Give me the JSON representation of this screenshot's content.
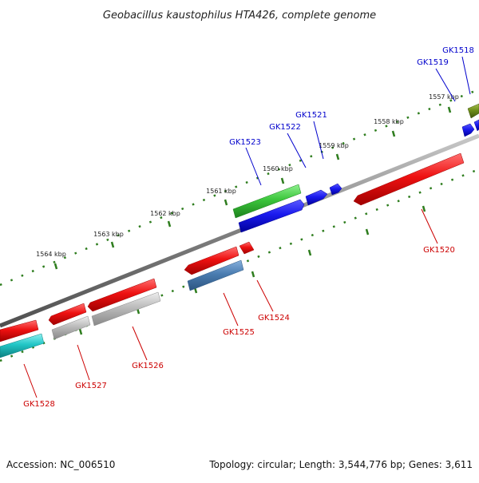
{
  "title": "Geobacillus kaustophilus HTA426, complete genome",
  "footer": {
    "accession": "Accession: NC_006510",
    "summary": "Topology: circular; Length: 3,544,776 bp; Genes: 3,611"
  },
  "kbp_labels": [
    "1557 kbp",
    "1558 kbp",
    "1559 kbp",
    "1560 kbp",
    "1561 kbp",
    "1562 kbp",
    "1563 kbp",
    "1564 kbp"
  ],
  "genes": [
    {
      "label": "GK1518",
      "strand": "top",
      "color": "#0000cc"
    },
    {
      "label": "GK1519",
      "strand": "top",
      "color": "#0000cc"
    },
    {
      "label": "GK1521",
      "strand": "top",
      "color": "#0000cc"
    },
    {
      "label": "GK1522",
      "strand": "top",
      "color": "#0000cc"
    },
    {
      "label": "GK1523",
      "strand": "top",
      "color": "#0000cc"
    },
    {
      "label": "GK1520",
      "strand": "bottom",
      "color": "#cc0000"
    },
    {
      "label": "GK1524",
      "strand": "bottom",
      "color": "#cc0000"
    },
    {
      "label": "GK1525",
      "strand": "bottom",
      "color": "#cc0000"
    },
    {
      "label": "GK1526",
      "strand": "bottom",
      "color": "#cc0000"
    },
    {
      "label": "GK1527",
      "strand": "bottom",
      "color": "#cc0000"
    },
    {
      "label": "GK1528",
      "strand": "bottom",
      "color": "#cc0000"
    }
  ],
  "colors": {
    "backbone": "#808080",
    "tick": "#2e7d1e",
    "red_feature": "#ee1111",
    "blue_feature": "#1a1aee",
    "green_feature": "#3cc63c",
    "steelblue_feature": "#4a7cb0",
    "gray_feature": "#bbbbbb",
    "cyan_feature": "#22c6c6",
    "olive_feature": "#6f8f1a"
  }
}
